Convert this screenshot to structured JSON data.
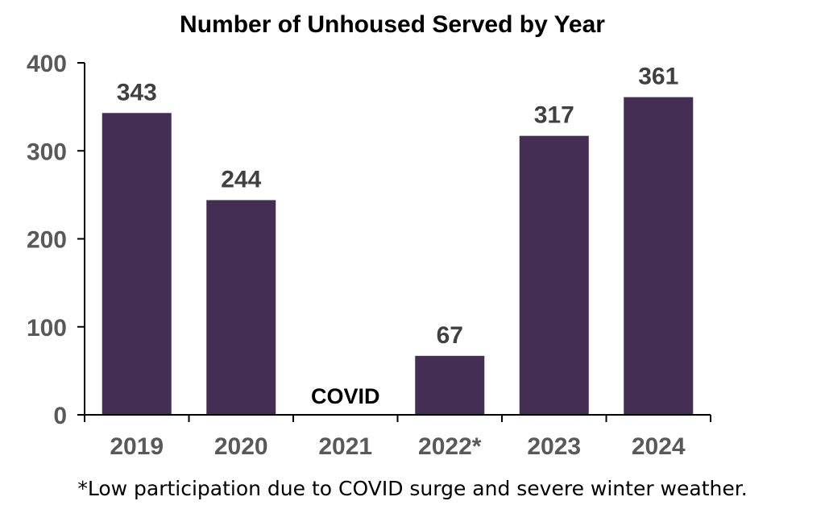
{
  "chart_data": {
    "type": "bar",
    "title": "Number of Unhoused Served by Year",
    "categories": [
      "2019",
      "2020",
      "2021",
      "2022*",
      "2023",
      "2024"
    ],
    "values": [
      343,
      244,
      null,
      67,
      317,
      361
    ],
    "data_labels": [
      "343",
      "244",
      "",
      "67",
      "317",
      "361"
    ],
    "yticks": [
      "0",
      "100",
      "200",
      "300",
      "400"
    ],
    "ylim": [
      0,
      400
    ],
    "xlabel": "",
    "ylabel": "",
    "grid": false,
    "legend": "none",
    "bar_color": "#452E53",
    "annotations": [
      {
        "category": "2021",
        "text": "COVID"
      }
    ],
    "footnote": "*Low participation due to COVID surge and severe winter weather."
  }
}
